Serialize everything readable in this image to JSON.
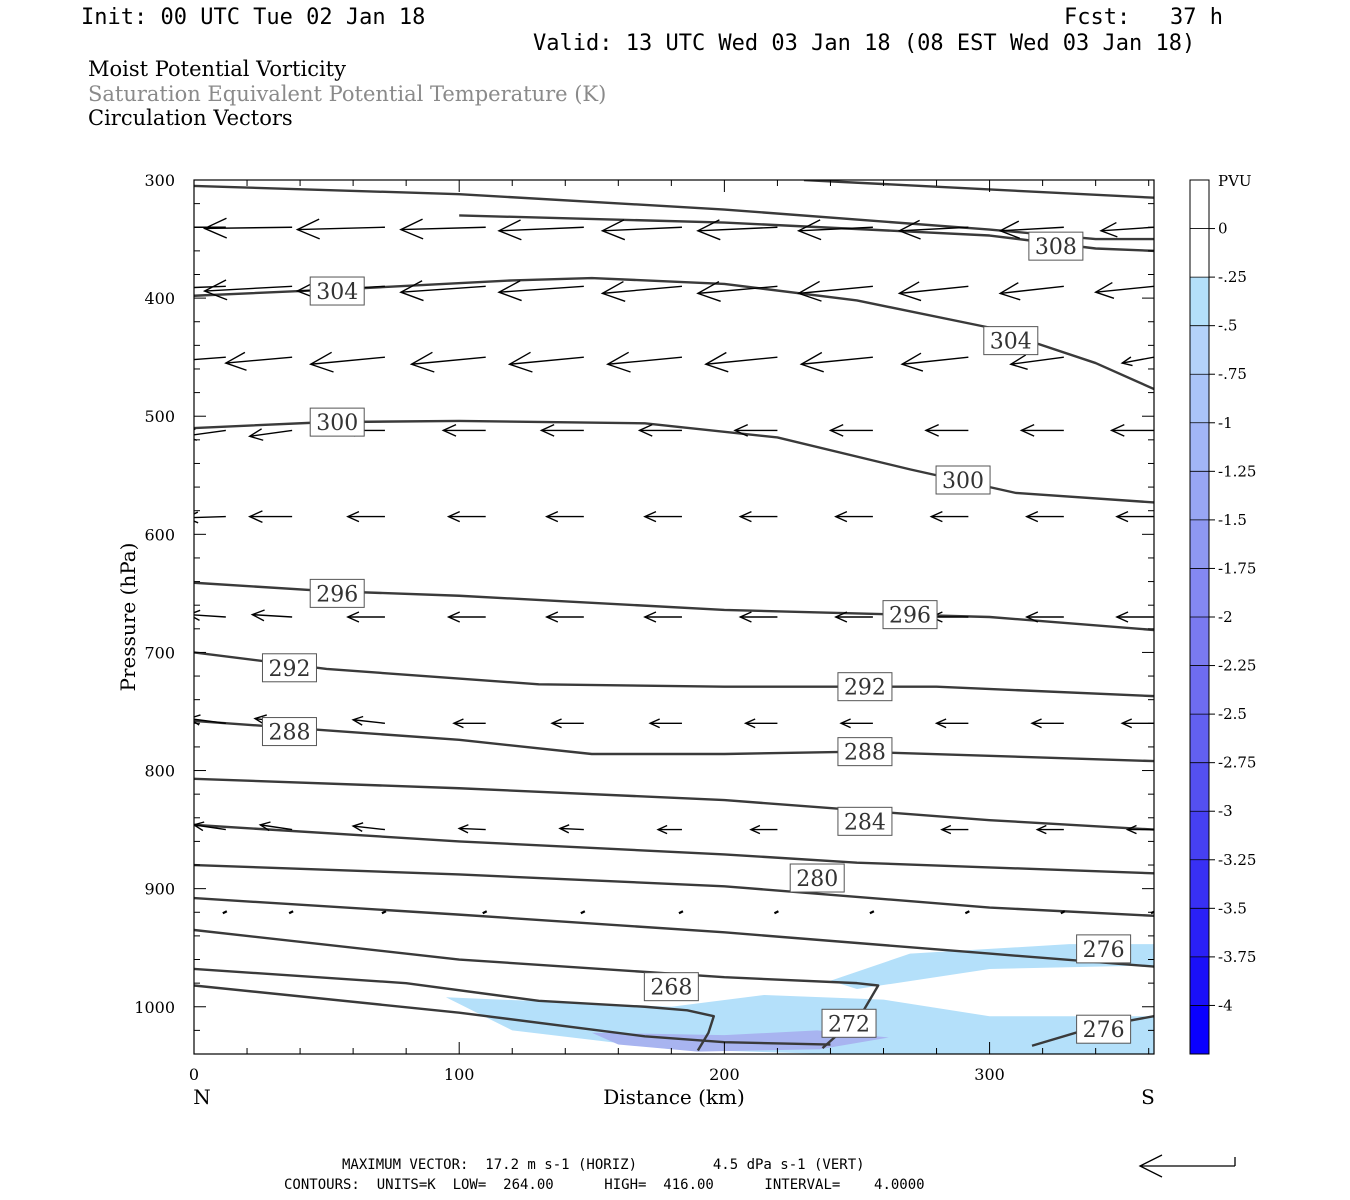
{
  "header": {
    "init": "Init: 00 UTC Tue 02 Jan 18",
    "fcst": "Fcst:   37 h",
    "valid": "Valid: 13 UTC Wed 03 Jan 18 (08 EST Wed 03 Jan 18)"
  },
  "titles": {
    "line1": "Moist Potential Vorticity",
    "line2": "Saturation Equivalent Potential Temperature (K)",
    "line3": "Circulation Vectors"
  },
  "colors": {
    "contour": "#3a3a3a",
    "pv_light": "#b4e0fa",
    "pv_medium": "#a8b4f0",
    "title_gray": "#8a8a8a"
  },
  "chart_data": {
    "type": "cross-section",
    "xlabel": "Distance (km)",
    "ylabel": "Pressure (hPa)",
    "xlim": [
      0,
      362
    ],
    "ylim": [
      300,
      1040
    ],
    "y_inverted": true,
    "x_ticks": [
      "0",
      "100",
      "200",
      "300"
    ],
    "y_ticks": [
      "300",
      "400",
      "500",
      "600",
      "700",
      "800",
      "900",
      "1000"
    ],
    "endpoint_left": "N",
    "endpoint_right": "S",
    "contours": [
      {
        "label": "308",
        "points": [
          [
            0,
            305
          ],
          [
            100,
            312
          ],
          [
            200,
            325
          ],
          [
            300,
            342
          ],
          [
            340,
            350
          ],
          [
            362,
            350
          ]
        ],
        "labels_at": [
          [
            325,
            356
          ]
        ]
      },
      {
        "label": "",
        "points": [
          [
            230,
            300
          ],
          [
            300,
            308
          ],
          [
            362,
            315
          ]
        ],
        "labels_at": []
      },
      {
        "label": "",
        "points": [
          [
            100,
            330
          ],
          [
            200,
            336
          ],
          [
            300,
            347
          ],
          [
            340,
            358
          ],
          [
            362,
            360
          ]
        ],
        "labels_at": []
      },
      {
        "label": "304",
        "points": [
          [
            0,
            398
          ],
          [
            60,
            392
          ],
          [
            120,
            385
          ],
          [
            150,
            383
          ],
          [
            200,
            388
          ],
          [
            250,
            402
          ],
          [
            300,
            425
          ],
          [
            340,
            455
          ],
          [
            362,
            477
          ]
        ],
        "labels_at": [
          [
            54,
            394
          ],
          [
            308,
            436
          ]
        ]
      },
      {
        "label": "300",
        "points": [
          [
            0,
            510
          ],
          [
            50,
            505
          ],
          [
            100,
            504
          ],
          [
            170,
            506
          ],
          [
            220,
            518
          ],
          [
            270,
            545
          ],
          [
            310,
            565
          ],
          [
            362,
            573
          ]
        ],
        "labels_at": [
          [
            54,
            505
          ],
          [
            290,
            554
          ]
        ]
      },
      {
        "label": "296",
        "points": [
          [
            0,
            641
          ],
          [
            50,
            648
          ],
          [
            100,
            652
          ],
          [
            200,
            664
          ],
          [
            300,
            670
          ],
          [
            362,
            681
          ]
        ],
        "labels_at": [
          [
            54,
            650
          ],
          [
            270,
            668
          ]
        ]
      },
      {
        "label": "292",
        "points": [
          [
            0,
            700
          ],
          [
            50,
            714
          ],
          [
            130,
            727
          ],
          [
            200,
            729
          ],
          [
            280,
            729
          ],
          [
            362,
            737
          ]
        ],
        "labels_at": [
          [
            36,
            713
          ],
          [
            253,
            729
          ]
        ]
      },
      {
        "label": "288",
        "points": [
          [
            0,
            758
          ],
          [
            100,
            774
          ],
          [
            150,
            786
          ],
          [
            200,
            786
          ],
          [
            250,
            784
          ],
          [
            362,
            792
          ]
        ],
        "labels_at": [
          [
            36,
            767
          ],
          [
            253,
            784
          ]
        ]
      },
      {
        "label": "284",
        "points": [
          [
            0,
            807
          ],
          [
            100,
            815
          ],
          [
            200,
            825
          ],
          [
            300,
            842
          ],
          [
            362,
            850
          ]
        ],
        "labels_at": [
          [
            253,
            843
          ]
        ]
      },
      {
        "label": "",
        "points": [
          [
            0,
            846
          ],
          [
            100,
            860
          ],
          [
            200,
            871
          ],
          [
            250,
            878
          ],
          [
            362,
            887
          ]
        ],
        "labels_at": []
      },
      {
        "label": "280",
        "points": [
          [
            0,
            880
          ],
          [
            100,
            888
          ],
          [
            200,
            898
          ],
          [
            300,
            916
          ],
          [
            362,
            923
          ]
        ],
        "labels_at": [
          [
            235,
            891
          ]
        ]
      },
      {
        "label": "276",
        "points": [
          [
            0,
            908
          ],
          [
            100,
            922
          ],
          [
            200,
            937
          ],
          [
            300,
            955
          ],
          [
            362,
            966
          ]
        ],
        "labels_at": [
          [
            343,
            951
          ]
        ]
      },
      {
        "label": "",
        "points": [
          [
            0,
            935
          ],
          [
            100,
            960
          ],
          [
            200,
            975
          ],
          [
            250,
            980
          ],
          [
            258,
            982
          ],
          [
            252,
            1005
          ],
          [
            237,
            1035
          ]
        ],
        "labels_at": []
      },
      {
        "label": "268",
        "points": [
          [
            0,
            968
          ],
          [
            80,
            980
          ],
          [
            130,
            995
          ],
          [
            170,
            1000
          ],
          [
            186,
            1003
          ],
          [
            196,
            1008
          ],
          [
            194,
            1022
          ],
          [
            190,
            1037
          ]
        ],
        "labels_at": [
          [
            180,
            983
          ]
        ]
      },
      {
        "label": "272",
        "points": [
          [
            0,
            982
          ],
          [
            100,
            1005
          ],
          [
            170,
            1025
          ],
          [
            200,
            1030
          ],
          [
            240,
            1032
          ]
        ],
        "labels_at": [
          [
            247,
            1014
          ]
        ]
      },
      {
        "label": "276",
        "points": [
          [
            316,
            1033
          ],
          [
            340,
            1017
          ],
          [
            362,
            1008
          ]
        ],
        "labels_at": [
          [
            343,
            1019
          ]
        ]
      }
    ],
    "pv_fill": [
      {
        "value": "-0.25 to -0.5",
        "color": "#b4e0fa",
        "points": [
          [
            95,
            992
          ],
          [
            180,
            1000
          ],
          [
            215,
            990
          ],
          [
            260,
            994
          ],
          [
            300,
            1008
          ],
          [
            362,
            1008
          ],
          [
            362,
            1040
          ],
          [
            240,
            1040
          ],
          [
            180,
            1036
          ],
          [
            120,
            1020
          ]
        ]
      },
      {
        "value": "-0.25 to -0.5",
        "color": "#b4e0fa",
        "points": [
          [
            240,
            978
          ],
          [
            270,
            955
          ],
          [
            330,
            947
          ],
          [
            362,
            947
          ],
          [
            362,
            965
          ],
          [
            300,
            968
          ],
          [
            250,
            985
          ]
        ]
      },
      {
        "value": "-0.75 to -1",
        "color": "#a8b4f0",
        "points": [
          [
            150,
            1022
          ],
          [
            200,
            1024
          ],
          [
            235,
            1020
          ],
          [
            262,
            1026
          ],
          [
            236,
            1036
          ],
          [
            190,
            1038
          ],
          [
            160,
            1032
          ]
        ]
      }
    ],
    "vectors": {
      "x_positions": [
        12,
        37,
        72,
        110,
        147,
        184,
        220,
        256,
        292,
        328,
        362
      ],
      "rows": [
        {
          "p": 340,
          "dx": [
            -35,
            -33,
            -33,
            -32,
            -32,
            -30,
            -30,
            -28,
            -26,
            -24,
            -20
          ],
          "dp": [
            0,
            1,
            2,
            2,
            3,
            3,
            3,
            3,
            3,
            3,
            3
          ]
        },
        {
          "p": 390,
          "dx": [
            -35,
            -33,
            -33,
            -32,
            -32,
            -30,
            -30,
            -28,
            -26,
            -24,
            -22
          ],
          "dp": [
            3,
            4,
            4,
            5,
            5,
            6,
            6,
            6,
            6,
            6,
            5
          ]
        },
        {
          "p": 450,
          "dx": [
            -24,
            -25,
            -28,
            -28,
            -28,
            -28,
            -27,
            -27,
            -25,
            -20,
            -12
          ],
          "dp": [
            4,
            5,
            6,
            6,
            6,
            6,
            6,
            6,
            6,
            6,
            5
          ]
        },
        {
          "p": 512,
          "dx": [
            -16,
            -16,
            -16,
            -16,
            -16,
            -16,
            -16,
            -16,
            -16,
            -16,
            -16
          ],
          "dp": [
            5,
            5,
            0,
            0,
            0,
            0,
            0,
            0,
            0,
            0,
            0
          ]
        },
        {
          "p": 585,
          "dx": [
            -15,
            -16,
            -14,
            -14,
            -14,
            -14,
            -14,
            -14,
            -14,
            -14,
            -14
          ],
          "dp": [
            1,
            0,
            0,
            0,
            0,
            0,
            0,
            0,
            0,
            0,
            0
          ]
        },
        {
          "p": 670,
          "dx": [
            -14,
            -15,
            -14,
            -14,
            -14,
            -14,
            -14,
            -14,
            -14,
            -14,
            -14
          ],
          "dp": [
            -2,
            -2,
            0,
            0,
            0,
            0,
            0,
            0,
            0,
            0,
            0
          ]
        },
        {
          "p": 760,
          "dx": [
            -14,
            -14,
            -12,
            -12,
            -12,
            -12,
            -12,
            -12,
            -12,
            -12,
            -12
          ],
          "dp": [
            -4,
            -4,
            -3,
            0,
            0,
            0,
            0,
            0,
            0,
            0,
            0
          ]
        },
        {
          "p": 850,
          "dx": [
            -12,
            -12,
            -12,
            -10,
            -9,
            -9,
            -10,
            -10,
            -10,
            -10,
            -10
          ],
          "dp": [
            -4,
            -4,
            -3,
            -1,
            -1,
            0,
            0,
            0,
            0,
            0,
            0
          ]
        },
        {
          "p": 920,
          "dx": [
            -1,
            -1,
            -1,
            -1,
            0,
            0,
            0,
            0,
            0,
            0,
            0
          ],
          "dp": [
            -2,
            -2,
            -1,
            -1,
            -1,
            0,
            0,
            0,
            0,
            0,
            0
          ]
        }
      ]
    }
  },
  "colorbar": {
    "unit": "PVU",
    "labels": [
      "0",
      "-.25",
      "-.5",
      "-.75",
      "-1",
      "-1.25",
      "-1.5",
      "-1.75",
      "-2",
      "-2.25",
      "-2.5",
      "-2.75",
      "-3",
      "-3.25",
      "-3.5",
      "-3.75",
      "-4"
    ],
    "colors": [
      "#ffffff",
      "#ffffff",
      "#b4e0fa",
      "#b4d2fa",
      "#aac4f8",
      "#a2b6f6",
      "#98a6f4",
      "#8e98f2",
      "#8488f2",
      "#7a7af0",
      "#6e6cf0",
      "#6260f0",
      "#5450f0",
      "#4640f2",
      "#3830f4",
      "#2a20f6",
      "#1a10f8",
      "#0a00ff"
    ]
  },
  "footer": {
    "line1": "MAXIMUM VECTOR:  17.2 m s-1 (HORIZ)         4.5 dPa s-1 (VERT)",
    "line2": "CONTOURS:  UNITS=K  LOW=  264.00      HIGH=  416.00      INTERVAL=    4.0000"
  }
}
